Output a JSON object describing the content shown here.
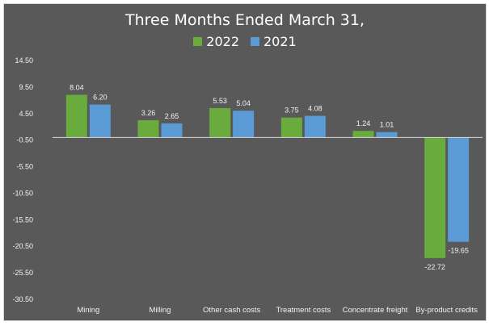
{
  "chart_data": {
    "type": "bar",
    "title": "Three Months Ended March 31,",
    "xlabel": "",
    "ylabel": "",
    "categories": [
      "Mining",
      "Milling",
      "Other cash costs",
      "Treatment costs",
      "Concentrate freight",
      "By-product credits"
    ],
    "series": [
      {
        "name": "2022",
        "color": "#6aab3e",
        "values": [
          8.04,
          3.26,
          5.53,
          3.75,
          1.24,
          -22.72
        ],
        "labels": [
          "8.04",
          "3.26",
          "5.53",
          "3.75",
          "1.24",
          "-22.72"
        ]
      },
      {
        "name": "2021",
        "color": "#5b9bd5",
        "values": [
          6.2,
          2.65,
          5.04,
          4.08,
          1.01,
          -19.65
        ],
        "labels": [
          "6.20",
          "2.65",
          "5.04",
          "4.08",
          "1.01",
          "-19.65"
        ]
      }
    ],
    "yticks": [
      14.5,
      9.5,
      4.5,
      -0.5,
      -5.5,
      -10.5,
      -15.5,
      -20.5,
      -25.5,
      -30.5
    ],
    "ytick_labels": [
      "14.50",
      "9.50",
      "4.50",
      "-0.50",
      "-5.50",
      "-10.50",
      "-15.50",
      "-20.50",
      "-25.50",
      "-30.50"
    ],
    "ylim": [
      -30.5,
      14.5
    ],
    "grid": false,
    "legend_position": "top-center",
    "background_color": "#595959",
    "axis_line_color": "#d9d9d9"
  }
}
